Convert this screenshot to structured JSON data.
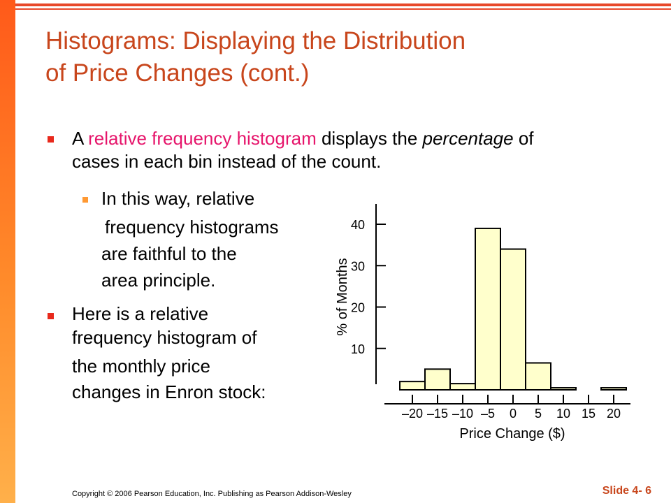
{
  "title": {
    "line1": "Histograms: Displaying the Distribution",
    "line2": "of Price Changes (cont.)"
  },
  "bullets": {
    "b1": {
      "part1": "A ",
      "highlight": "relative frequency histogram",
      "part2": " displays the ",
      "italic": "percentage",
      "part3": " of",
      "line2": "cases in each bin instead of the count."
    },
    "sub1": {
      "line1": "In this way, relative",
      "line2": "frequency histograms",
      "line3": "are faithful to the",
      "line4": "area principle."
    },
    "b2": {
      "line1": "Here is a relative",
      "line2": "frequency histogram of",
      "line3": "the monthly price",
      "line4": "changes in Enron stock:"
    }
  },
  "footer": {
    "copyright": "Copyright © 2006 Pearson Education, Inc. Publishing as Pearson Addison-Wesley",
    "slide": "Slide 4- 6"
  },
  "colors": {
    "title": "#c8461c",
    "highlight": "#e6156b",
    "bar_fill": "#ffffcc",
    "left_bar": "#ff7a22"
  },
  "chart_data": {
    "type": "bar",
    "bins": [
      {
        "from": -22.5,
        "to": -17.5,
        "value": 2
      },
      {
        "from": -17.5,
        "to": -12.5,
        "value": 5
      },
      {
        "from": -12.5,
        "to": -7.5,
        "value": 1.5
      },
      {
        "from": -7.5,
        "to": -2.5,
        "value": 39
      },
      {
        "from": -2.5,
        "to": 2.5,
        "value": 34
      },
      {
        "from": 2.5,
        "to": 7.5,
        "value": 6.5
      },
      {
        "from": 7.5,
        "to": 12.5,
        "value": 0.5
      },
      {
        "from": 12.5,
        "to": 17.5,
        "value": 0
      },
      {
        "from": 17.5,
        "to": 22.5,
        "value": 0.5
      }
    ],
    "xticks": [
      -20,
      -15,
      -10,
      -5,
      0,
      5,
      10,
      15,
      20
    ],
    "xtick_labels": [
      "–20",
      "–15",
      "–10",
      "–5",
      "0",
      "5",
      "10",
      "15",
      "20"
    ],
    "yticks": [
      10,
      20,
      30,
      40
    ],
    "xlabel": "Price Change ($)",
    "ylabel": "% of Months",
    "xlim": [
      -22.5,
      22.5
    ],
    "ylim": [
      0,
      40
    ]
  }
}
